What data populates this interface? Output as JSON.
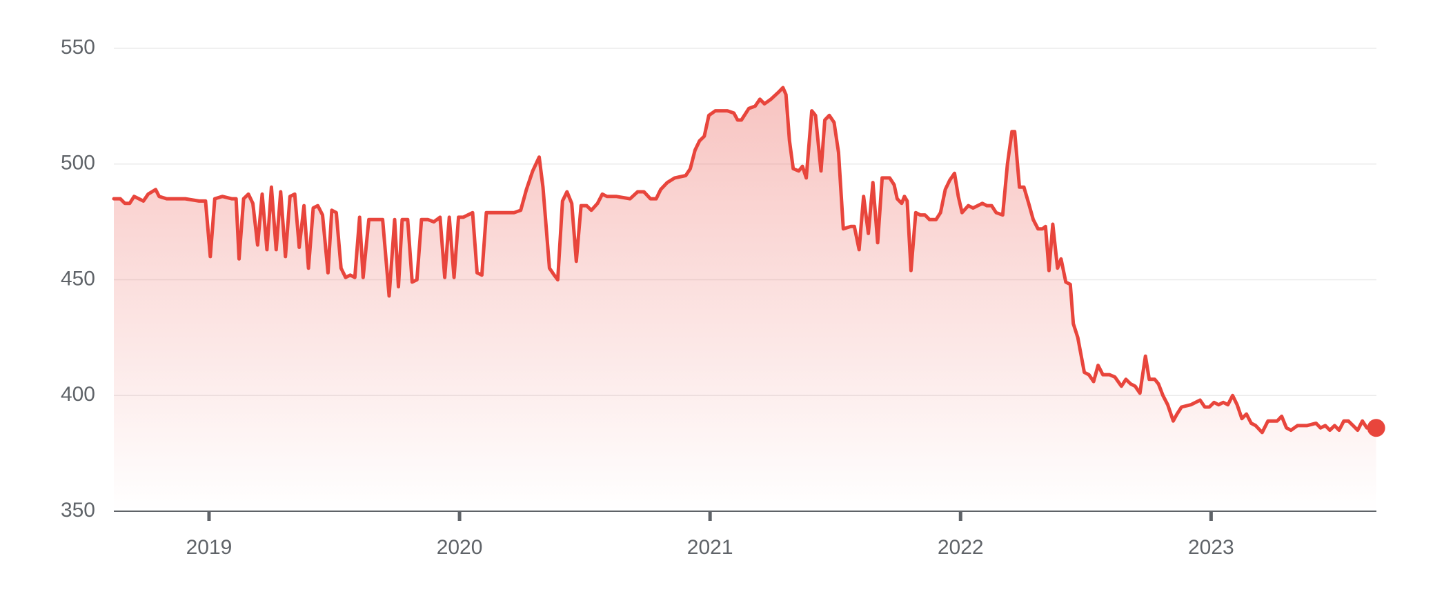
{
  "chart_data": {
    "type": "line",
    "x": [
      2018.62,
      2018.646,
      2018.664,
      2018.683,
      2018.701,
      2018.72,
      2018.738,
      2018.757,
      2018.787,
      2018.801,
      2018.831,
      2018.905,
      2018.96,
      2018.986,
      2019.005,
      2019.023,
      2019.053,
      2019.09,
      2019.108,
      2019.12,
      2019.138,
      2019.157,
      2019.175,
      2019.194,
      2019.212,
      2019.231,
      2019.249,
      2019.268,
      2019.286,
      2019.305,
      2019.323,
      2019.342,
      2019.36,
      2019.379,
      2019.397,
      2019.416,
      2019.434,
      2019.453,
      2019.475,
      2019.49,
      2019.508,
      2019.527,
      2019.545,
      2019.564,
      2019.582,
      2019.601,
      2019.615,
      2019.638,
      2019.663,
      2019.693,
      2019.719,
      2019.741,
      2019.756,
      2019.771,
      2019.793,
      2019.811,
      2019.83,
      2019.848,
      2019.874,
      2019.897,
      2019.922,
      2019.941,
      2019.959,
      2019.978,
      2019.996,
      2020.015,
      2020.052,
      2020.07,
      2020.089,
      2020.107,
      2020.126,
      2020.163,
      2020.193,
      2020.218,
      2020.244,
      2020.267,
      2020.292,
      2020.318,
      2020.333,
      2020.359,
      2020.378,
      2020.392,
      2020.411,
      2020.429,
      2020.448,
      2020.466,
      2020.485,
      2020.507,
      2020.526,
      2020.551,
      2020.57,
      2020.588,
      2020.625,
      2020.681,
      2020.711,
      2020.736,
      2020.762,
      2020.785,
      2020.803,
      2020.829,
      2020.859,
      2020.903,
      2020.921,
      2020.94,
      2020.958,
      2020.977,
      2020.995,
      2021.021,
      2021.069,
      2021.095,
      2021.11,
      2021.125,
      2021.155,
      2021.18,
      2021.199,
      2021.217,
      2021.243,
      2021.273,
      2021.291,
      2021.303,
      2021.317,
      2021.332,
      2021.354,
      2021.369,
      2021.384,
      2021.406,
      2021.421,
      2021.443,
      2021.458,
      2021.476,
      2021.495,
      2021.513,
      2021.532,
      2021.562,
      2021.576,
      2021.595,
      2021.613,
      2021.632,
      2021.65,
      2021.669,
      2021.687,
      2021.717,
      2021.735,
      2021.747,
      2021.765,
      2021.776,
      2021.787,
      2021.802,
      2021.821,
      2021.839,
      2021.858,
      2021.876,
      2021.902,
      2021.92,
      2021.939,
      2021.957,
      2021.976,
      2021.991,
      2022.006,
      2022.031,
      2022.05,
      2022.087,
      2022.105,
      2022.124,
      2022.142,
      2022.168,
      2022.187,
      2022.205,
      2022.216,
      2022.235,
      2022.253,
      2022.272,
      2022.29,
      2022.309,
      2022.327,
      2022.339,
      2022.353,
      2022.368,
      2022.387,
      2022.401,
      2022.42,
      2022.438,
      2022.45,
      2022.468,
      2022.494,
      2022.512,
      2022.531,
      2022.549,
      2022.568,
      2022.594,
      2022.616,
      2022.642,
      2022.66,
      2022.679,
      2022.697,
      2022.716,
      2022.738,
      2022.753,
      2022.775,
      2022.79,
      2022.808,
      2022.827,
      2022.849,
      2022.864,
      2022.882,
      2022.919,
      2022.956,
      2022.975,
      2022.993,
      2023.012,
      2023.03,
      2023.049,
      2023.067,
      2023.086,
      2023.104,
      2023.123,
      2023.141,
      2023.16,
      2023.178,
      2023.204,
      2023.227,
      2023.264,
      2023.282,
      2023.301,
      2023.319,
      2023.345,
      2023.382,
      2023.419,
      2023.437,
      2023.456,
      2023.474,
      2023.493,
      2023.511,
      2023.53,
      2023.548,
      2023.567,
      2023.585,
      2023.604,
      2023.622,
      2023.641,
      2023.659
    ],
    "series": [
      {
        "color": "#e8453c",
        "values": [
          485,
          485,
          483,
          483,
          486,
          485,
          484,
          487,
          489,
          486,
          485,
          485,
          484,
          484,
          460,
          485,
          486,
          485,
          485,
          459,
          485,
          487,
          483,
          465,
          487,
          463,
          490,
          463,
          488,
          460,
          486,
          487,
          464,
          482,
          455,
          481,
          482,
          478,
          453,
          480,
          479,
          455,
          451,
          452,
          451,
          477,
          451,
          476,
          476,
          476,
          443,
          476,
          447,
          476,
          476,
          449,
          450,
          476,
          476,
          475,
          477,
          451,
          477,
          451,
          477,
          477,
          479,
          453,
          452,
          479,
          479,
          479,
          479,
          479,
          480,
          489,
          497,
          503,
          490,
          455,
          452,
          450,
          484,
          488,
          483,
          458,
          482,
          482,
          480,
          483,
          487,
          486,
          486,
          485,
          488,
          488,
          485,
          485,
          489,
          492,
          494,
          495,
          498,
          506,
          510,
          512,
          521,
          523,
          523,
          522,
          519,
          519,
          524,
          525,
          528,
          526,
          528,
          531,
          533,
          530,
          510,
          498,
          497,
          499,
          494,
          523,
          521,
          497,
          519,
          521,
          518,
          505,
          472,
          473,
          473,
          463,
          486,
          470,
          492,
          466,
          494,
          494,
          491,
          485,
          483,
          486,
          484,
          454,
          479,
          478,
          478,
          476,
          476,
          479,
          489,
          493,
          496,
          486,
          479,
          482,
          481,
          483,
          482,
          482,
          479,
          478,
          500,
          514,
          514,
          490,
          490,
          483,
          476,
          472,
          472,
          473,
          454,
          474,
          455,
          459,
          449,
          448,
          431,
          425,
          410,
          409,
          406,
          413,
          409,
          409,
          408,
          404,
          407,
          405,
          404,
          401,
          417,
          407,
          407,
          405,
          400,
          396,
          389,
          392,
          395,
          396,
          398,
          395,
          395,
          397,
          396,
          397,
          396,
          400,
          396,
          390,
          392,
          388,
          387,
          384,
          389,
          389,
          391,
          386,
          385,
          387,
          387,
          388,
          386,
          387,
          385,
          387,
          385,
          389,
          389,
          387,
          385,
          389,
          386,
          386,
          386
        ]
      }
    ],
    "xlim": [
      2018.62,
      2023.66
    ],
    "ylim": [
      350,
      550
    ],
    "xticks": [
      2019,
      2020,
      2021,
      2022,
      2023
    ],
    "yticks": [
      350,
      400,
      450,
      500,
      550
    ],
    "grid": true,
    "area": true
  }
}
